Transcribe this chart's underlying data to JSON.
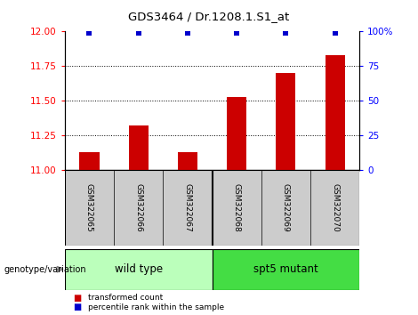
{
  "title": "GDS3464 / Dr.1208.1.S1_at",
  "samples": [
    "GSM322065",
    "GSM322066",
    "GSM322067",
    "GSM322068",
    "GSM322069",
    "GSM322070"
  ],
  "transformed_counts": [
    11.13,
    11.32,
    11.13,
    11.53,
    11.7,
    11.83
  ],
  "percentile_ranks": [
    99,
    99,
    99,
    99,
    99,
    99
  ],
  "ylim_left": [
    11,
    12
  ],
  "ylim_right": [
    0,
    100
  ],
  "yticks_left": [
    11,
    11.25,
    11.5,
    11.75,
    12
  ],
  "yticks_right": [
    0,
    25,
    50,
    75,
    100
  ],
  "ytick_labels_right": [
    "0",
    "25",
    "50",
    "75",
    "100%"
  ],
  "bar_color": "#cc0000",
  "percentile_color": "#0000cc",
  "group1_label": "wild type",
  "group2_label": "spt5 mutant",
  "group1_color": "#bbffbb",
  "group2_color": "#44dd44",
  "legend_bar_label": "transformed count",
  "legend_pct_label": "percentile rank within the sample",
  "genotype_label": "genotype/variation",
  "tick_area_color": "#cccccc",
  "bar_width": 0.4,
  "grid_yticks": [
    11.25,
    11.5,
    11.75
  ]
}
